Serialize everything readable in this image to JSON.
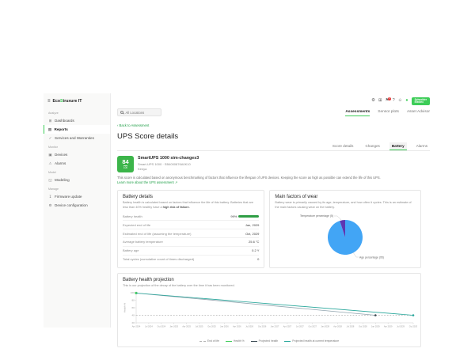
{
  "colors": {
    "accent_green": "#3dcd58",
    "score_green": "#3cb54a",
    "link_green": "#1e9e46",
    "badge_red": "#e23b3b"
  },
  "sidebar": {
    "logo_text": "EcoStruxure IT",
    "sections": [
      {
        "label": "Analyze",
        "items": [
          {
            "label": "Dashboards",
            "icon": "dashboards-icon",
            "glyph": "⊞",
            "active": false
          },
          {
            "label": "Reports",
            "icon": "reports-icon",
            "glyph": "▤",
            "active": true
          },
          {
            "label": "Services and Warranties",
            "icon": "services-warranties-icon",
            "glyph": "✓",
            "active": false
          }
        ]
      },
      {
        "label": "Monitor",
        "items": [
          {
            "label": "Devices",
            "icon": "devices-icon",
            "glyph": "▣",
            "active": false
          },
          {
            "label": "Alarms",
            "icon": "alarms-icon",
            "glyph": "⚠",
            "active": false
          }
        ]
      },
      {
        "label": "Model",
        "items": [
          {
            "label": "Modeling",
            "icon": "modeling-icon",
            "glyph": "◱",
            "active": false
          }
        ]
      },
      {
        "label": "Manage",
        "items": [
          {
            "label": "Firmware update",
            "icon": "firmware-update-icon",
            "glyph": "↧",
            "active": false
          },
          {
            "label": "Device configuration",
            "icon": "device-configuration-icon",
            "glyph": "⚙",
            "active": false
          }
        ]
      }
    ]
  },
  "topbar": {
    "icons": [
      {
        "name": "settings-icon",
        "glyph": "⚙"
      },
      {
        "name": "apps-icon",
        "glyph": "⊞"
      },
      {
        "name": "notifications-icon",
        "glyph": "⚑",
        "badge": "2"
      },
      {
        "name": "help-icon",
        "glyph": "?"
      },
      {
        "name": "user-icon",
        "glyph": "☺"
      },
      {
        "name": "status-icon",
        "glyph": "●",
        "green": true
      }
    ],
    "brand_line1": "Schneider",
    "brand_line2": "Electric"
  },
  "header": {
    "search_placeholder": "All Locations",
    "main_tabs": [
      {
        "label": "Assessments",
        "active": true
      },
      {
        "label": "Sensor plots",
        "active": false
      },
      {
        "label": "Asset Advisor",
        "active": false
      }
    ],
    "back_link": "‹ Back to Assessment",
    "page_title": "UPS Score details",
    "sub_tabs": [
      {
        "label": "Score details",
        "active": false
      },
      {
        "label": "Changes",
        "active": false
      },
      {
        "label": "Battery",
        "active": true
      },
      {
        "label": "Alarms",
        "active": false
      }
    ]
  },
  "score_card": {
    "score": "84",
    "score_max": "100",
    "device_name": "SmartUPS 1000 sim-changes3",
    "device_model": "Smart-UPS 1000 · SB4000876A0K10",
    "location": "Kenya",
    "description": "This score is calculated based on anonymous benchmarking of factors that influence the lifespan of UPS devices. Keeping the score as high as possible can extend the life of this UPS.",
    "link_label": "Learn more about the UPS assessment",
    "link_icon": "↗"
  },
  "battery_details": {
    "title": "Battery details",
    "description": "Battery health is calculated based on factors that influence the life of this battery. Batteries that are less than 40% healthy have a ",
    "description_bold": "high risk of failure.",
    "rows": [
      {
        "label": "Battery health",
        "value": "99%",
        "bar_percent": 99
      },
      {
        "label": "Expected end of life",
        "value": "Jan, 2029"
      },
      {
        "label": "Estimated end of life (assuming the temperature)",
        "value": "Oct, 2029"
      },
      {
        "label": "Average battery temperature",
        "value": "25.6 °C"
      },
      {
        "label": "Battery age",
        "value": "0.2 Y"
      },
      {
        "label": "Total cycles (cumulative count of times discharged)",
        "value": "0"
      }
    ]
  },
  "wear_card": {
    "title": "Main factors of wear",
    "description": "Battery wear is primarily caused by its age, temperature, and how often it cycles. This is an estimate of the main factors causing wear on the battery."
  },
  "projection_card": {
    "title": "Battery health projection",
    "description": "This is our projection of the decay of the battery over the time it has been monitored."
  },
  "chart_data": [
    {
      "type": "pie",
      "title": "Main factors of wear",
      "slices": [
        {
          "label": "Age percentage (95)",
          "value": 95,
          "color": "#42a5f5"
        },
        {
          "label": "Temperature percentage (5)",
          "value": 5,
          "color": "#5e35b1"
        }
      ],
      "legend_position": "callout-labels"
    },
    {
      "type": "line",
      "title": "Battery health projection",
      "xlabel": "",
      "ylabel": "Health %",
      "ylim": [
        20,
        100
      ],
      "yticks": [
        20,
        40,
        60,
        80,
        100
      ],
      "grid": false,
      "legend_position": "bottom",
      "x_ticks": [
        "Apr 2024",
        "Jul 2024",
        "Oct 2024",
        "Jan 2025",
        "Apr 2025",
        "Jul 2025",
        "Oct 2025",
        "Jan 2026",
        "Apr 2026",
        "Jul 2026",
        "Oct 2026",
        "Jan 2027",
        "Apr 2027",
        "Jul 2027",
        "Oct 2027",
        "Jan 2028",
        "Apr 2028",
        "Jul 2028",
        "Oct 2028",
        "Jan 2029",
        "Apr 2029",
        "Jul 2029",
        "Oct 2029"
      ],
      "series": [
        {
          "name": "End of life",
          "color": "#b3b3b3",
          "dash": "1.8 1.8",
          "points": [
            [
              "Apr 2024",
              40
            ],
            [
              "Oct 2029",
              40
            ]
          ]
        },
        {
          "name": "Health %",
          "color": "#3dcd58",
          "points": [
            [
              "Apr 2024",
              99
            ]
          ],
          "marker": "square"
        },
        {
          "name": "Projected health",
          "color": "#90a4ae",
          "points": [
            [
              "Apr 2024",
              99
            ],
            [
              "Jan 2029",
              40
            ]
          ],
          "marker": "end-dot",
          "marker_color": "#37474f"
        },
        {
          "name": "Projected health at current temperature",
          "color": "#26a69a",
          "points": [
            [
              "Apr 2024",
              99
            ],
            [
              "Oct 2029",
              40
            ]
          ],
          "marker": "end-dot"
        }
      ]
    }
  ]
}
